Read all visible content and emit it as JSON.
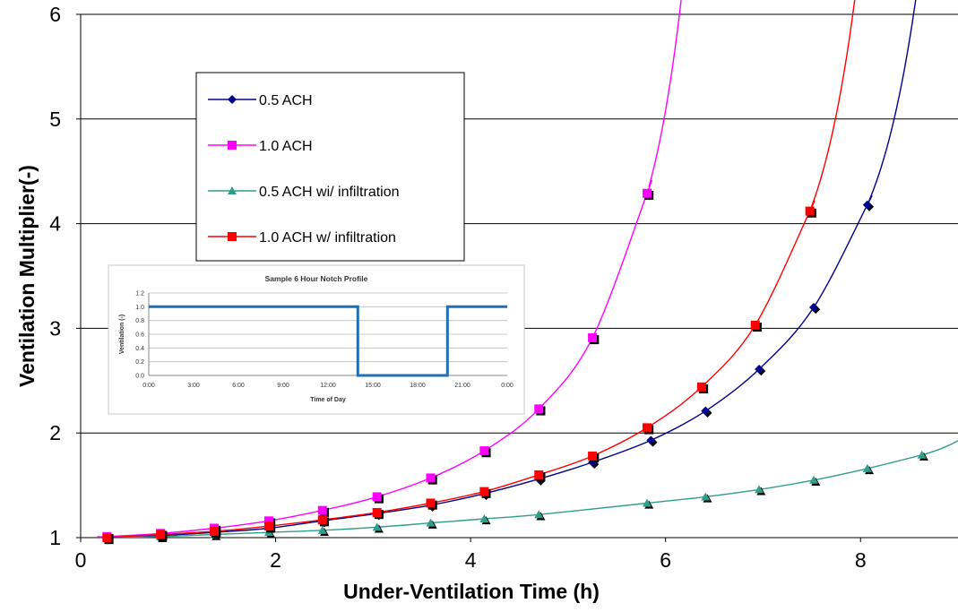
{
  "chart_data": [
    {
      "type": "line",
      "xlabel": "Under-Ventilation Time (h)",
      "ylabel": "Ventilation Multiplier(-)",
      "xlim": [
        0,
        9
      ],
      "ylim": [
        1,
        6
      ],
      "xticks": [
        0,
        2,
        4,
        6,
        8
      ],
      "yticks": [
        1,
        2,
        3,
        4,
        5,
        6
      ],
      "grid": "horizontal",
      "legend_position": "upper-left",
      "series": [
        {
          "name": "0.5 ACH",
          "color": "#00008B",
          "marker": "diamond",
          "x": [
            0.27,
            0.82,
            1.37,
            1.93,
            2.48,
            3.04,
            3.59,
            4.14,
            4.7,
            5.25,
            5.85,
            6.41,
            6.96,
            7.52,
            8.07
          ],
          "y": [
            1.0,
            1.02,
            1.05,
            1.09,
            1.16,
            1.23,
            1.31,
            1.42,
            1.56,
            1.72,
            1.93,
            2.21,
            2.61,
            3.2,
            4.18
          ]
        },
        {
          "name": "1.0 ACH",
          "color": "#FF00FF",
          "marker": "square",
          "x": [
            0.27,
            0.82,
            1.37,
            1.93,
            2.48,
            3.04,
            3.59,
            4.14,
            4.7,
            5.25,
            5.81
          ],
          "y": [
            1.01,
            1.04,
            1.09,
            1.16,
            1.26,
            1.39,
            1.57,
            1.83,
            2.23,
            2.91,
            4.29
          ]
        },
        {
          "name": "0.5 ACH wi/ infiltration",
          "color": "#2E9E8A",
          "marker": "triangle",
          "x": [
            0.27,
            0.82,
            1.37,
            1.93,
            2.48,
            3.04,
            3.59,
            4.14,
            4.7,
            5.81,
            6.41,
            6.96,
            7.52,
            8.07,
            8.63
          ],
          "y": [
            1.0,
            1.01,
            1.03,
            1.05,
            1.07,
            1.1,
            1.14,
            1.18,
            1.22,
            1.33,
            1.39,
            1.46,
            1.55,
            1.66,
            1.79
          ]
        },
        {
          "name": "1.0 ACH w/ infiltration",
          "color": "#FF0000",
          "marker": "square",
          "x": [
            0.27,
            0.82,
            1.37,
            1.93,
            2.48,
            3.04,
            3.59,
            4.14,
            4.7,
            5.25,
            5.81,
            6.37,
            6.92,
            7.48
          ],
          "y": [
            1.0,
            1.03,
            1.06,
            1.11,
            1.17,
            1.24,
            1.33,
            1.44,
            1.6,
            1.78,
            2.05,
            2.44,
            3.03,
            4.12
          ]
        }
      ]
    },
    {
      "type": "line",
      "title": "Sample 6 Hour Notch Profile",
      "xlabel": "Time of Day",
      "ylabel": "Ventilation (-)",
      "ylim": [
        0,
        1.2
      ],
      "yticks": [
        "0.0",
        "0.2",
        "0.4",
        "0.6",
        "0.8",
        "1.0",
        "1.2"
      ],
      "xticks": [
        "0:00",
        "3:00",
        "6:00",
        "9:00",
        "12:00",
        "15:00",
        "18:00",
        "21:00",
        "0:00"
      ],
      "grid": "horizontal",
      "color": "#1F6FB4",
      "x_hours": [
        0,
        14,
        14,
        20,
        20,
        24
      ],
      "y": [
        1.0,
        1.0,
        0,
        0,
        1.0,
        1.0
      ]
    }
  ]
}
